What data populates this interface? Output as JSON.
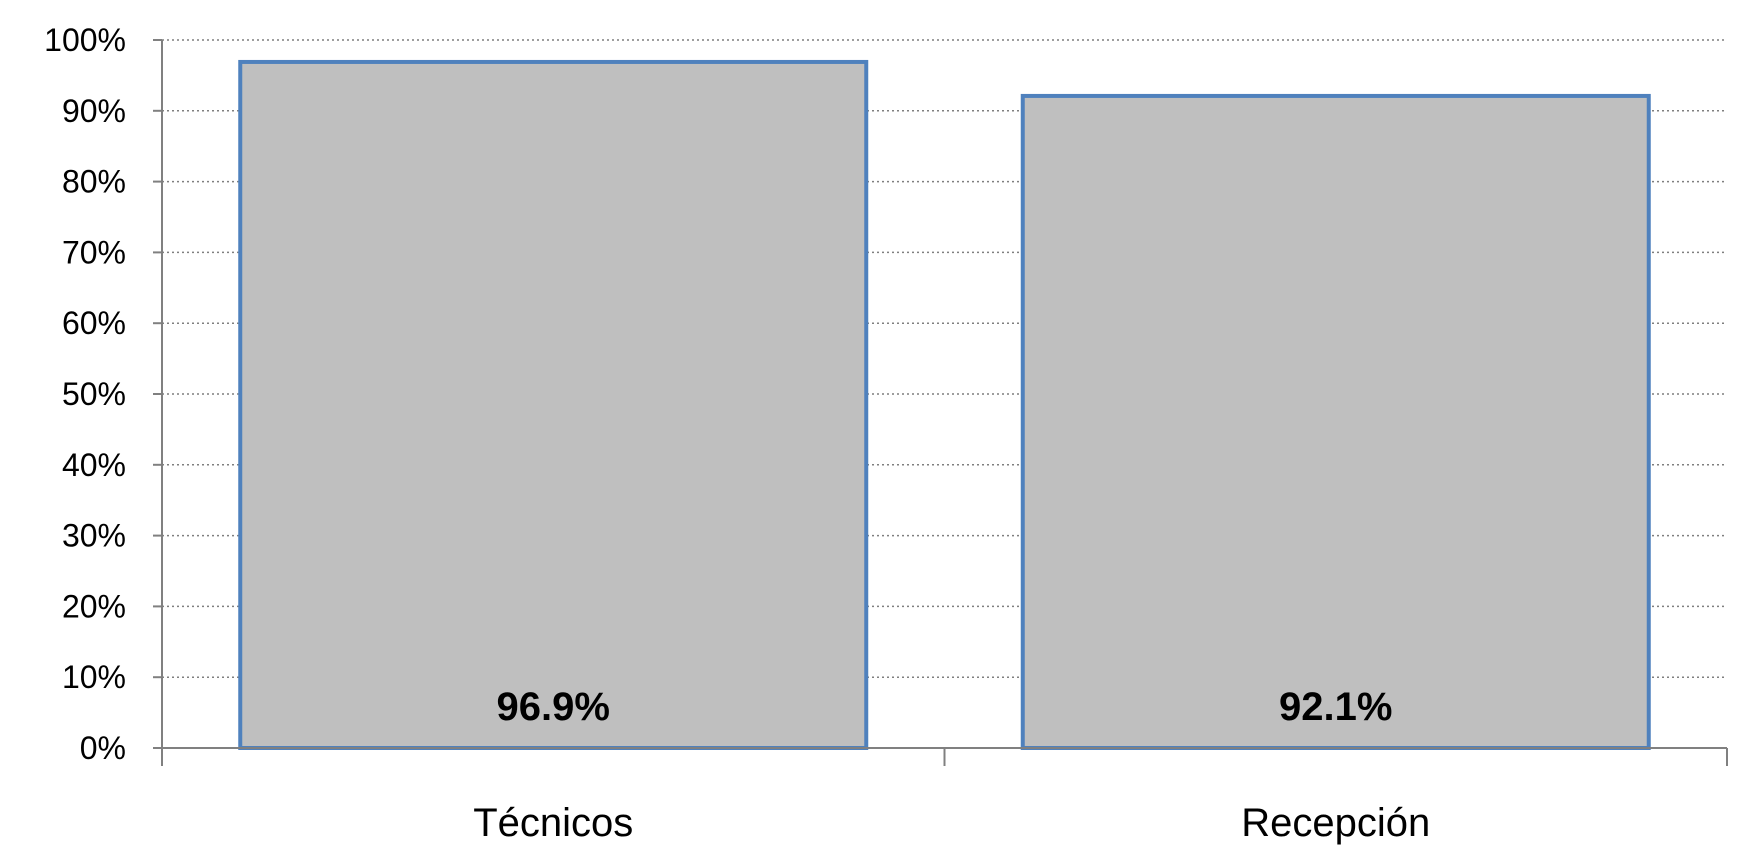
{
  "chart_data": {
    "type": "bar",
    "categories": [
      "Técnicos",
      "Recepción"
    ],
    "values": [
      96.9,
      92.1
    ],
    "data_labels": [
      "96.9%",
      "92.1%"
    ],
    "title": "",
    "xlabel": "",
    "ylabel": "",
    "ylim": [
      0,
      100
    ],
    "yticks": [
      0,
      10,
      20,
      30,
      40,
      50,
      60,
      70,
      80,
      90,
      100
    ],
    "ytick_labels": [
      "0%",
      "10%",
      "20%",
      "30%",
      "40%",
      "50%",
      "60%",
      "70%",
      "80%",
      "90%",
      "100%"
    ],
    "grid": true,
    "grid_style": "dotted",
    "legend": "none",
    "colors": {
      "bar_fill": "#bfbfbf",
      "bar_stroke": "#4f81bd",
      "grid": "#7f7f7f",
      "axis": "#808080"
    }
  }
}
